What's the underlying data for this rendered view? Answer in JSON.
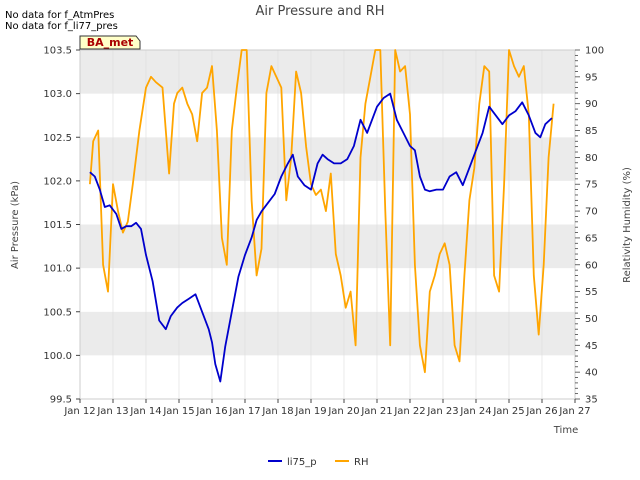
{
  "notes": [
    "No data for f_AtmPres",
    "No data for f_li77_pres"
  ],
  "badge": "BA_met",
  "colors": {
    "li75_p": "#0000cc",
    "RH": "#ffa500",
    "band": "#ebebeb",
    "grid": "#dddddd"
  },
  "chart_data": {
    "type": "line",
    "title": "Air Pressure and RH",
    "xlabel": "Time",
    "ylabel": "Air Pressure (kPa)",
    "y2label": "Relativity Humidity (%)",
    "xlim": [
      12,
      27
    ],
    "ylim": [
      99.5,
      103.5
    ],
    "y2lim": [
      35,
      100
    ],
    "x_ticks": [
      {
        "value": 12,
        "label": "Jan 12"
      },
      {
        "value": 13,
        "label": "Jan 13"
      },
      {
        "value": 14,
        "label": "Jan 14"
      },
      {
        "value": 15,
        "label": "Jan 15"
      },
      {
        "value": 16,
        "label": "Jan 16"
      },
      {
        "value": 17,
        "label": "Jan 17"
      },
      {
        "value": 18,
        "label": "Jan 18"
      },
      {
        "value": 19,
        "label": "Jan 19"
      },
      {
        "value": 20,
        "label": "Jan 20"
      },
      {
        "value": 21,
        "label": "Jan 21"
      },
      {
        "value": 22,
        "label": "Jan 22"
      },
      {
        "value": 23,
        "label": "Jan 23"
      },
      {
        "value": 24,
        "label": "Jan 24"
      },
      {
        "value": 25,
        "label": "Jan 25"
      },
      {
        "value": 26,
        "label": "Jan 26"
      },
      {
        "value": 27,
        "label": "Jan 27"
      }
    ],
    "y_ticks": [
      {
        "value": 99.5,
        "label": "99.5"
      },
      {
        "value": 100.0,
        "label": "100.0"
      },
      {
        "value": 100.5,
        "label": "100.5"
      },
      {
        "value": 101.0,
        "label": "101.0"
      },
      {
        "value": 101.5,
        "label": "101.5"
      },
      {
        "value": 102.0,
        "label": "102.0"
      },
      {
        "value": 102.5,
        "label": "102.5"
      },
      {
        "value": 103.0,
        "label": "103.0"
      },
      {
        "value": 103.5,
        "label": "103.5"
      }
    ],
    "y2_ticks": [
      {
        "value": 35,
        "label": "35"
      },
      {
        "value": 40,
        "label": "40"
      },
      {
        "value": 45,
        "label": "45"
      },
      {
        "value": 50,
        "label": "50"
      },
      {
        "value": 55,
        "label": "55"
      },
      {
        "value": 60,
        "label": "60"
      },
      {
        "value": 65,
        "label": "65"
      },
      {
        "value": 70,
        "label": "70"
      },
      {
        "value": 75,
        "label": "75"
      },
      {
        "value": 80,
        "label": "80"
      },
      {
        "value": 85,
        "label": "85"
      },
      {
        "value": 90,
        "label": "90"
      },
      {
        "value": 95,
        "label": "95"
      },
      {
        "value": 100,
        "label": "100"
      }
    ],
    "legend": [
      "li75_p",
      "RH"
    ],
    "legend_position": "bottom-center",
    "series": [
      {
        "name": "li75_p",
        "axis": "left",
        "x": [
          12.3,
          12.45,
          12.6,
          12.75,
          12.9,
          13.1,
          13.25,
          13.4,
          13.55,
          13.7,
          13.85,
          14.0,
          14.2,
          14.4,
          14.6,
          14.75,
          14.85,
          14.95,
          15.1,
          15.3,
          15.5,
          15.7,
          15.9,
          16.0,
          16.1,
          16.25,
          16.4,
          16.6,
          16.8,
          17.0,
          17.2,
          17.35,
          17.5,
          17.7,
          17.9,
          18.1,
          18.3,
          18.45,
          18.6,
          18.8,
          19.0,
          19.2,
          19.35,
          19.5,
          19.7,
          19.9,
          20.1,
          20.3,
          20.5,
          20.7,
          20.9,
          21.0,
          21.2,
          21.4,
          21.6,
          21.8,
          22.0,
          22.15,
          22.3,
          22.45,
          22.6,
          22.8,
          23.0,
          23.2,
          23.4,
          23.6,
          23.8,
          24.0,
          24.2,
          24.4,
          24.6,
          24.8,
          25.0,
          25.2,
          25.4,
          25.6,
          25.8,
          25.95,
          26.1,
          26.3
        ],
        "values": [
          102.1,
          102.05,
          101.9,
          101.7,
          101.72,
          101.62,
          101.45,
          101.48,
          101.48,
          101.52,
          101.45,
          101.15,
          100.85,
          100.4,
          100.3,
          100.45,
          100.5,
          100.55,
          100.6,
          100.65,
          100.7,
          100.5,
          100.3,
          100.15,
          99.9,
          99.7,
          100.1,
          100.5,
          100.9,
          101.15,
          101.35,
          101.55,
          101.65,
          101.75,
          101.85,
          102.05,
          102.2,
          102.3,
          102.05,
          101.95,
          101.9,
          102.2,
          102.3,
          102.25,
          102.2,
          102.2,
          102.25,
          102.4,
          102.7,
          102.55,
          102.75,
          102.85,
          102.95,
          103.0,
          102.7,
          102.55,
          102.4,
          102.35,
          102.05,
          101.9,
          101.88,
          101.9,
          101.9,
          102.05,
          102.1,
          101.95,
          102.15,
          102.35,
          102.55,
          102.85,
          102.75,
          102.65,
          102.75,
          102.8,
          102.9,
          102.75,
          102.55,
          102.5,
          102.65,
          102.72
        ]
      },
      {
        "name": "RH",
        "axis": "right",
        "x": [
          12.3,
          12.4,
          12.55,
          12.7,
          12.85,
          13.0,
          13.15,
          13.3,
          13.45,
          13.6,
          13.8,
          14.0,
          14.15,
          14.3,
          14.5,
          14.7,
          14.85,
          14.95,
          15.1,
          15.25,
          15.4,
          15.55,
          15.7,
          15.85,
          16.0,
          16.15,
          16.3,
          16.45,
          16.6,
          16.75,
          16.9,
          17.05,
          17.2,
          17.35,
          17.5,
          17.65,
          17.8,
          17.95,
          18.1,
          18.25,
          18.4,
          18.55,
          18.7,
          18.85,
          19.0,
          19.15,
          19.3,
          19.45,
          19.6,
          19.75,
          19.9,
          20.05,
          20.2,
          20.35,
          20.5,
          20.65,
          20.8,
          20.95,
          21.1,
          21.25,
          21.4,
          21.55,
          21.7,
          21.85,
          22.0,
          22.15,
          22.3,
          22.45,
          22.6,
          22.75,
          22.9,
          23.05,
          23.2,
          23.35,
          23.5,
          23.65,
          23.8,
          23.95,
          24.1,
          24.25,
          24.4,
          24.55,
          24.7,
          24.85,
          25.0,
          25.15,
          25.3,
          25.45,
          25.6,
          25.75,
          25.9,
          26.05,
          26.2,
          26.35
        ],
        "values": [
          75,
          83,
          85,
          60,
          55,
          75,
          70,
          66,
          68,
          75,
          85,
          93,
          95,
          94,
          93,
          77,
          90,
          92,
          93,
          90,
          88,
          83,
          92,
          93,
          97,
          85,
          65,
          60,
          85,
          93,
          100,
          100,
          72,
          58,
          63,
          92,
          97,
          95,
          93,
          72,
          80,
          96,
          92,
          82,
          75,
          73,
          74,
          70,
          77,
          62,
          58,
          52,
          55,
          45,
          80,
          90,
          95,
          100,
          100,
          70,
          45,
          100,
          96,
          97,
          88,
          60,
          45,
          40,
          55,
          58,
          62,
          64,
          60,
          45,
          42,
          58,
          72,
          78,
          90,
          97,
          96,
          58,
          55,
          75,
          100,
          97,
          95,
          97,
          88,
          58,
          47,
          60,
          80,
          90
        ]
      }
    ]
  }
}
